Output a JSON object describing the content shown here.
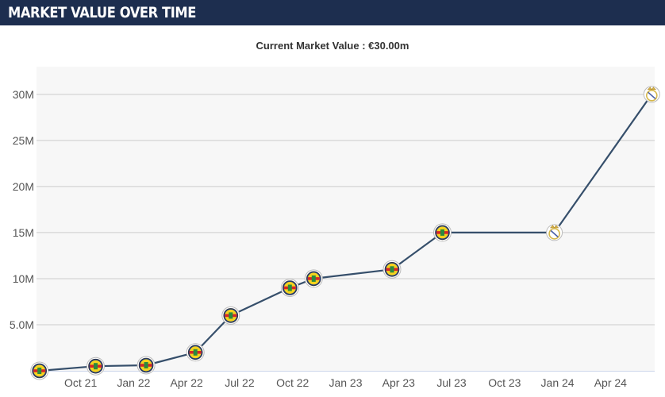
{
  "header": {
    "title": "MARKET VALUE OVER TIME"
  },
  "summary": {
    "label": "Current Market Value : €30.00m"
  },
  "colors": {
    "header_bg": "#1d2e4f",
    "plot_bg": "#f7f7f7",
    "line": "#364f6b",
    "grid": "#cccccc",
    "club_a_primary": "#f6d31e",
    "club_a_secondary": "#1e3a7a",
    "club_b_primary": "#ffffff",
    "club_b_accent": "#d6b84a"
  },
  "chart_data": {
    "type": "line",
    "title": "",
    "xlabel": "",
    "ylabel": "",
    "x_ticks": [
      "Oct 21",
      "Jan 22",
      "Apr 22",
      "Jul 22",
      "Oct 22",
      "Jan 23",
      "Apr 23",
      "Jul 23",
      "Oct 23",
      "Jan 24",
      "Apr 24"
    ],
    "x_range": [
      "2021-07-15",
      "2024-06-15"
    ],
    "y_ticks": [
      "5.0M",
      "10M",
      "15M",
      "20M",
      "25M",
      "30M"
    ],
    "y_tick_values": [
      5,
      10,
      15,
      20,
      25,
      30
    ],
    "ylim": [
      0,
      33
    ],
    "grid": true,
    "series": [
      {
        "values": [
          {
            "date": "2021-07-20",
            "value": 0.0,
            "club": "club-a"
          },
          {
            "date": "2021-10-25",
            "value": 0.5,
            "club": "club-a"
          },
          {
            "date": "2022-01-20",
            "value": 0.6,
            "club": "club-a"
          },
          {
            "date": "2022-04-15",
            "value": 2.0,
            "club": "club-a"
          },
          {
            "date": "2022-06-15",
            "value": 6.0,
            "club": "club-a"
          },
          {
            "date": "2022-09-25",
            "value": 9.0,
            "club": "club-a"
          },
          {
            "date": "2022-11-05",
            "value": 10.0,
            "club": "club-a"
          },
          {
            "date": "2023-03-20",
            "value": 11.0,
            "club": "club-a"
          },
          {
            "date": "2023-06-15",
            "value": 15.0,
            "club": "club-a"
          },
          {
            "date": "2023-12-25",
            "value": 15.0,
            "club": "club-b"
          },
          {
            "date": "2024-06-10",
            "value": 30.0,
            "club": "club-b"
          }
        ]
      }
    ]
  }
}
